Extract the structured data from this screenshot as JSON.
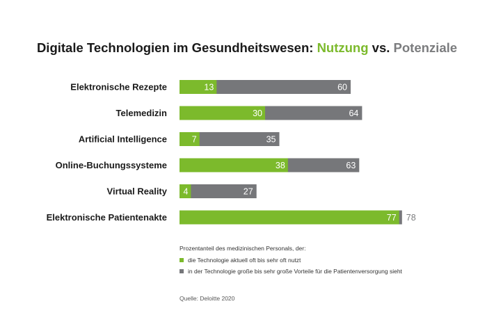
{
  "title": {
    "prefix": "Digitale Technologien im Gesundheitswesen: ",
    "usage": "Nutzung",
    "vs": " vs. ",
    "potential": "Potenziale"
  },
  "colors": {
    "usage": "#7cba2c",
    "potential": "#76777a",
    "title": "#1a1a1a"
  },
  "chart_data": {
    "type": "bar",
    "orientation": "horizontal",
    "stacked": false,
    "overlay": true,
    "categories": [
      "Elektronische Rezepte",
      "Telemedizin",
      "Artificial Intelligence",
      "Online-Buchungssysteme",
      "Virtual Reality",
      "Elektronische Patientenakte"
    ],
    "series": [
      {
        "name": "die Technologie aktuell oft bis sehr oft nutzt",
        "values": [
          13,
          30,
          7,
          38,
          4,
          77
        ]
      },
      {
        "name": "in der Technologie große bis sehr große Vorteile für die Patientenversorgung sieht",
        "values": [
          60,
          64,
          35,
          63,
          27,
          78
        ]
      }
    ],
    "xlim": [
      0,
      78
    ],
    "grid": false,
    "legend_position": "bottom"
  },
  "legend": {
    "heading": "Prozentanteil des medizinischen Personals, der:",
    "usage_label": "die Technologie aktuell oft bis sehr oft nutzt",
    "potential_label": "in der Technologie große bis sehr große Vorteile für die Patientenversorgung sieht"
  },
  "source": "Quelle: Deloitte 2020"
}
